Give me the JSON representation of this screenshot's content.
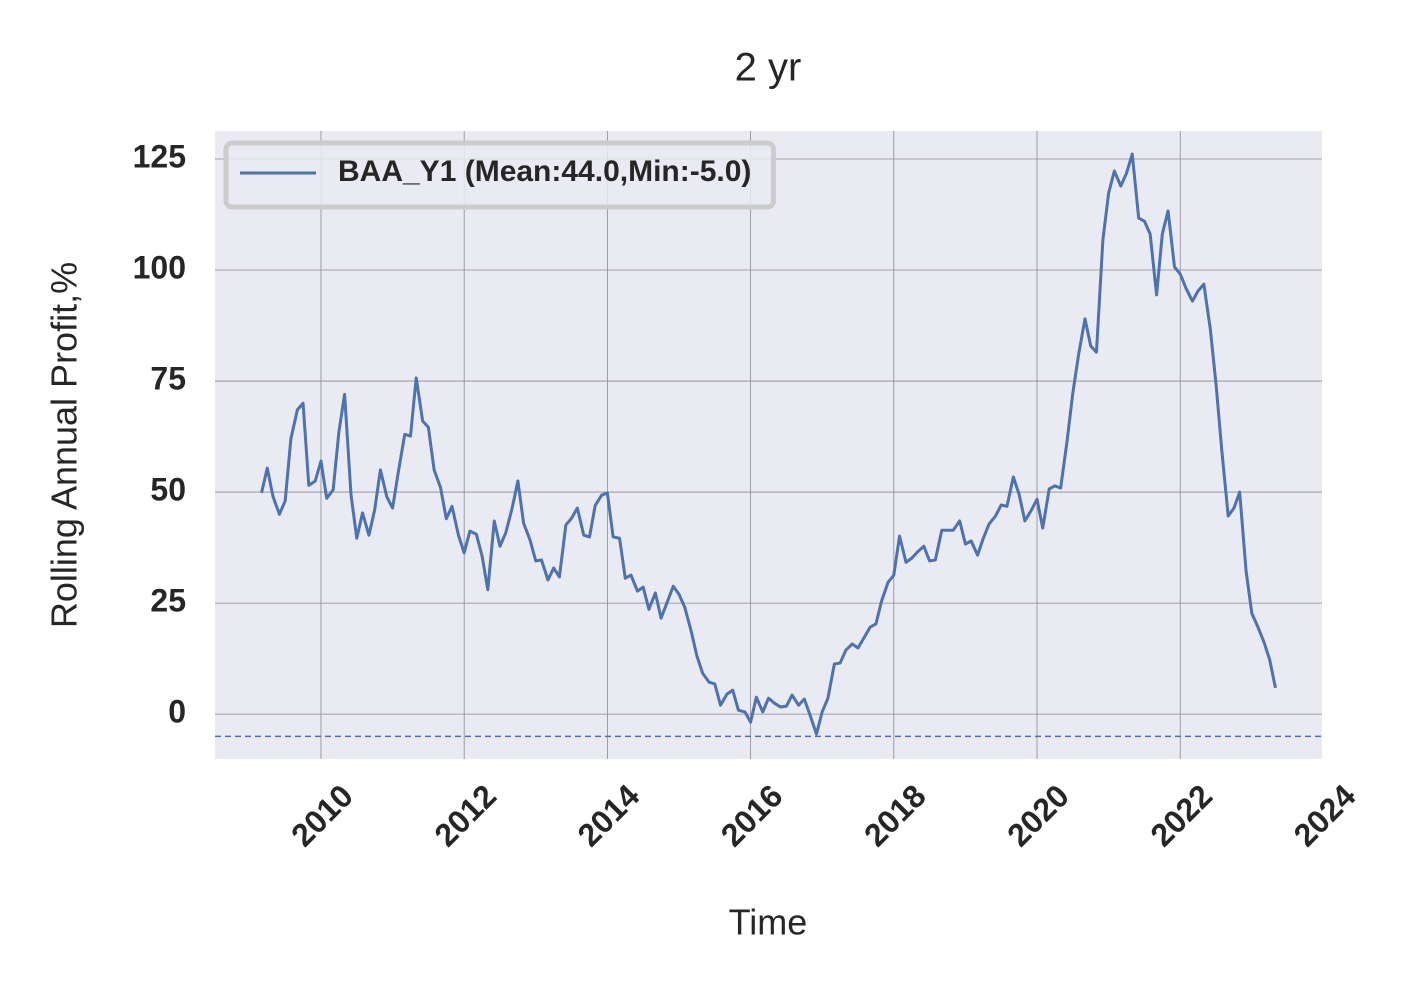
{
  "chart_data": {
    "type": "line",
    "title": "2 yr",
    "xlabel": "Time",
    "ylabel": "Rolling Annual Profit,%",
    "x": [
      2009.17,
      2009.25,
      2009.33,
      2009.42,
      2009.5,
      2009.58,
      2009.67,
      2009.75,
      2009.83,
      2009.92,
      2010.0,
      2010.08,
      2010.17,
      2010.25,
      2010.33,
      2010.42,
      2010.5,
      2010.58,
      2010.67,
      2010.75,
      2010.83,
      2010.92,
      2011.0,
      2011.08,
      2011.17,
      2011.25,
      2011.33,
      2011.42,
      2011.5,
      2011.58,
      2011.67,
      2011.75,
      2011.83,
      2011.92,
      2012.0,
      2012.08,
      2012.17,
      2012.25,
      2012.33,
      2012.42,
      2012.5,
      2012.58,
      2012.67,
      2012.75,
      2012.83,
      2012.92,
      2013.0,
      2013.08,
      2013.17,
      2013.25,
      2013.33,
      2013.42,
      2013.5,
      2013.58,
      2013.67,
      2013.75,
      2013.83,
      2013.92,
      2014.0,
      2014.08,
      2014.17,
      2014.25,
      2014.33,
      2014.42,
      2014.5,
      2014.58,
      2014.67,
      2014.75,
      2014.83,
      2014.92,
      2015.0,
      2015.08,
      2015.17,
      2015.25,
      2015.33,
      2015.42,
      2015.5,
      2015.58,
      2015.67,
      2015.75,
      2015.83,
      2015.92,
      2016.0,
      2016.08,
      2016.17,
      2016.25,
      2016.33,
      2016.42,
      2016.5,
      2016.58,
      2016.67,
      2016.75,
      2016.83,
      2016.92,
      2017.0,
      2017.08,
      2017.17,
      2017.25,
      2017.33,
      2017.42,
      2017.5,
      2017.58,
      2017.67,
      2017.75,
      2017.83,
      2017.92,
      2018.0,
      2018.08,
      2018.17,
      2018.25,
      2018.33,
      2018.42,
      2018.5,
      2018.58,
      2018.67,
      2018.75,
      2018.83,
      2018.92,
      2019.0,
      2019.08,
      2019.17,
      2019.25,
      2019.33,
      2019.42,
      2019.5,
      2019.58,
      2019.67,
      2019.75,
      2019.83,
      2019.92,
      2020.0,
      2020.08,
      2020.17,
      2020.25,
      2020.33,
      2020.42,
      2020.5,
      2020.58,
      2020.67,
      2020.75,
      2020.83,
      2020.92,
      2021.0,
      2021.08,
      2021.17,
      2021.25,
      2021.33,
      2021.42,
      2021.5,
      2021.58,
      2021.67,
      2021.75,
      2021.83,
      2021.92,
      2022.0,
      2022.08,
      2022.17,
      2022.25,
      2022.33,
      2022.42,
      2022.5,
      2022.58,
      2022.67,
      2022.75,
      2022.83,
      2022.92,
      2023.0,
      2023.08,
      2023.17,
      2023.25,
      2023.33
    ],
    "series": [
      {
        "name": "BAA_Y1 (Mean:44.0,Min:-5.0)",
        "color": "#4c72b0",
        "values": [
          49.8,
          55.4,
          49,
          45,
          48,
          62,
          68.5,
          70,
          51.5,
          52.5,
          57,
          48.6,
          50.5,
          63.5,
          72,
          49.3,
          39.6,
          45.3,
          40.3,
          46,
          55,
          48.9,
          46.4,
          54.5,
          63,
          62.6,
          75.7,
          66,
          64.6,
          55,
          51,
          44,
          46.8,
          40.3,
          36.3,
          41.2,
          40.5,
          35.6,
          28,
          43.5,
          37.8,
          40.8,
          46.4,
          52.5,
          43,
          39.2,
          34.5,
          34.7,
          30.2,
          32.9,
          30.9,
          42.6,
          44.1,
          46.4,
          40.3,
          39.9,
          47,
          49.3,
          49.8,
          39.9,
          39.6,
          30.6,
          31.3,
          27.7,
          28.6,
          23.6,
          27.3,
          21.6,
          25,
          28.8,
          27,
          24.1,
          18.7,
          13.1,
          9.2,
          7.2,
          6.8,
          2,
          4.5,
          5.4,
          0.9,
          0.5,
          -1.8,
          3.8,
          0.5,
          3.6,
          2.5,
          1.6,
          1.8,
          4.3,
          2,
          3.4,
          -0.2,
          -4.5,
          0.5,
          3.6,
          11.3,
          11.5,
          14.4,
          15.8,
          14.9,
          17.1,
          19.6,
          20.3,
          25.5,
          29.7,
          31.3,
          40.1,
          34.2,
          35.1,
          36.5,
          37.8,
          34.5,
          34.7,
          41.4,
          41.4,
          41.4,
          43.5,
          38.3,
          39,
          35.8,
          39.6,
          42.8,
          44.6,
          47.1,
          46.8,
          53.4,
          49.5,
          43.5,
          45.9,
          48.4,
          41.9,
          50.7,
          51.4,
          50.9,
          61.5,
          72.3,
          80.9,
          89,
          82.9,
          81.5,
          106.8,
          117.3,
          122.3,
          118.9,
          121.8,
          126.1,
          111.7,
          111,
          108.1,
          94.4,
          108.1,
          113.3,
          100.7,
          99.1,
          95.9,
          93,
          95.3,
          96.8,
          86.7,
          74.3,
          59.5,
          44.6,
          46.4,
          50,
          32.2,
          22.7,
          19.8,
          16.2,
          12.2,
          5.9
        ]
      }
    ],
    "hline": {
      "value": -5,
      "color": "#4c72b0",
      "style": "dashed"
    },
    "xlim": [
      2008.52,
      2023.98
    ],
    "ylim": [
      -10.1,
      131.3
    ],
    "xticks": [
      2010,
      2012,
      2014,
      2016,
      2018,
      2020,
      2022,
      2024
    ],
    "yticks": [
      0,
      25,
      50,
      75,
      100,
      125
    ],
    "grid": true,
    "legend": "upper left",
    "background": "#eaeaf2"
  }
}
